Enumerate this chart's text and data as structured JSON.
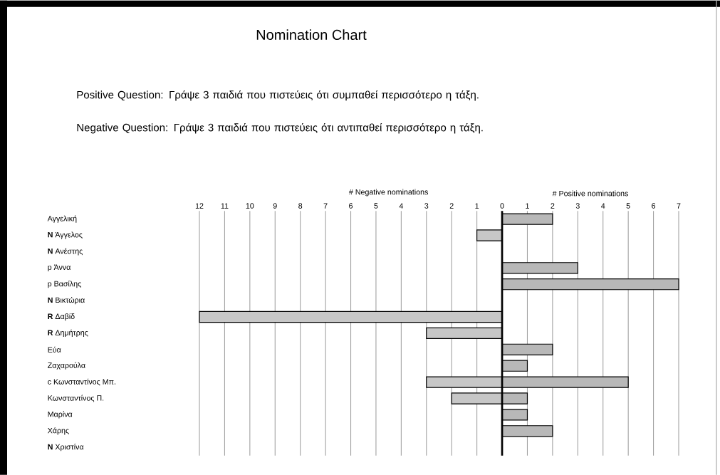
{
  "chart_data": {
    "type": "bar",
    "orientation": "horizontal",
    "title": "Nomination Chart",
    "annotations": [
      "Positive Question:   Γράψε 3 παιδιά που πιστεύεις ότι συμπαθεί περισσότερο η τάξη.",
      "Negative Question:  Γράψε 3 παιδιά που πιστεύεις ότι αντιπαθεί περισσότερο η τάξη.",
      "# Negative nominations",
      "# Positive nominations"
    ],
    "categories": [
      "Αγγελική",
      "**N** Άγγελος",
      "**N** Ανέστης",
      "p Άννα",
      "p Βασίλης",
      "**N** Βικτώρια",
      "**R** Δαβίδ",
      "**R** Δημήτρης",
      "Εύα",
      "Ζαχαρούλα",
      "c Κωνσταντίνος Μπ.",
      "Κωνσταντίνος Π.",
      "Μαρίνα",
      "Χάρης",
      "**N** Χριστίνα"
    ],
    "series": [
      {
        "color": "#000000",
        "values": [
          null,
          -1,
          null,
          null,
          null,
          null,
          -12,
          -3,
          null,
          null,
          -3,
          -2,
          null,
          null,
          null
        ]
      },
      {
        "color": "#000000",
        "values": [
          2,
          null,
          null,
          3,
          7,
          null,
          null,
          null,
          2,
          1,
          5,
          1,
          1,
          2,
          null
        ]
      }
    ],
    "xlim": [
      -12,
      7
    ],
    "xticks": [
      {
        "value": -12,
        "label": "12"
      },
      {
        "value": -11,
        "label": "11"
      },
      {
        "value": -10,
        "label": "10"
      },
      {
        "value": -9,
        "label": "9"
      },
      {
        "value": -8,
        "label": "8"
      },
      {
        "value": -7,
        "label": "7"
      },
      {
        "value": -6,
        "label": "6"
      },
      {
        "value": -5,
        "label": "5"
      },
      {
        "value": -4,
        "label": "4"
      },
      {
        "value": -3,
        "label": "3"
      },
      {
        "value": -2,
        "label": "2"
      },
      {
        "value": -1,
        "label": "1"
      },
      0,
      1,
      2,
      3,
      4,
      5,
      6,
      7
    ],
    "grid": "x",
    "legend": false
  }
}
